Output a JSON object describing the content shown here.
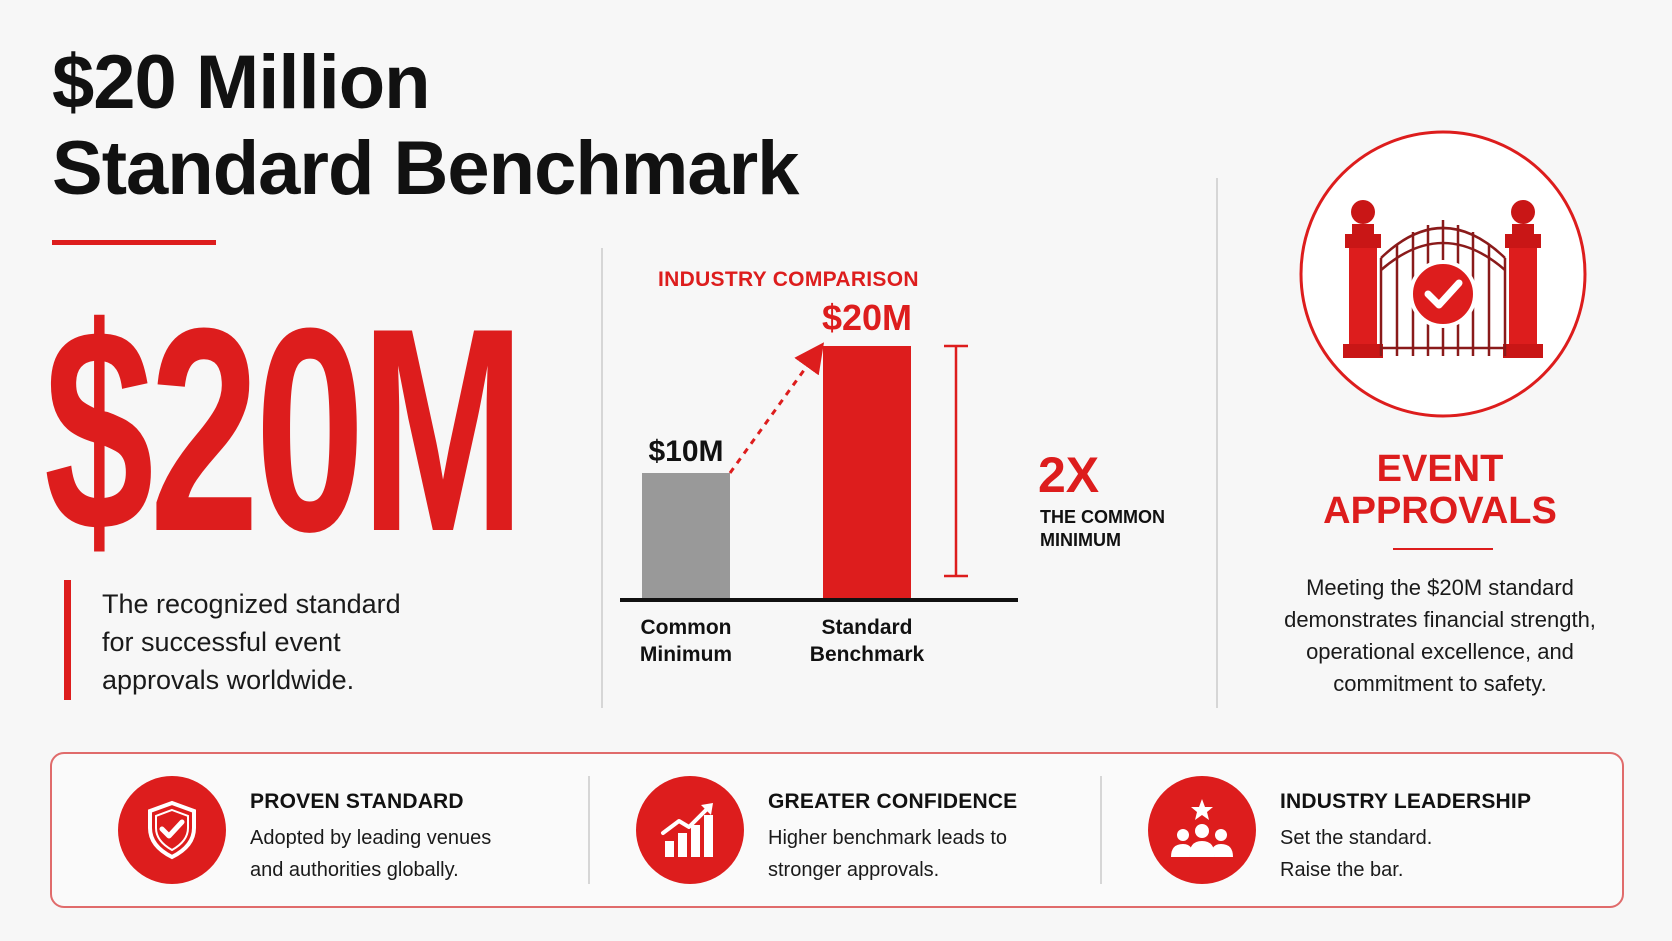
{
  "page": {
    "title_line1": "$20 Million",
    "title_line2": "Standard Benchmark",
    "accent_color": "#dd1d1d"
  },
  "hero": {
    "value": "$20M",
    "desc_line1": "The recognized standard",
    "desc_line2": "for successful event",
    "desc_line3": "approvals worldwide."
  },
  "chart_heading": "INDUSTRY COMPARISON",
  "chart_data": {
    "type": "bar",
    "title": "INDUSTRY COMPARISON",
    "categories": [
      "Common Minimum",
      "Standard Benchmark"
    ],
    "category_lines": [
      [
        "Common",
        "Minimum"
      ],
      [
        "Standard",
        "Benchmark"
      ]
    ],
    "values": [
      10,
      20
    ],
    "value_labels": [
      "$10M",
      "$20M"
    ],
    "bar_colors": [
      "#999999",
      "#dd1d1d"
    ],
    "ylim": [
      0,
      20
    ],
    "grid": false,
    "annotation": {
      "value": "2X",
      "label_line1": "THE COMMON",
      "label_line2": "MINIMUM"
    }
  },
  "approvals": {
    "icon": "gate-check-icon",
    "title_line1": "EVENT",
    "title_line2": "APPROVALS",
    "desc_line1": "Meeting the $20M standard",
    "desc_line2": "demonstrates financial strength,",
    "desc_line3": "operational excellence, and",
    "desc_line4": "commitment to safety."
  },
  "features": [
    {
      "icon": "shield-check-icon",
      "title": "PROVEN STANDARD",
      "line1": "Adopted by leading venues",
      "line2": "and authorities globally."
    },
    {
      "icon": "growth-chart-icon",
      "title": "GREATER CONFIDENCE",
      "line1": "Higher benchmark leads to",
      "line2": "stronger approvals."
    },
    {
      "icon": "team-star-icon",
      "title": "INDUSTRY LEADERSHIP",
      "line1": "Set the standard.",
      "line2": "Raise the bar."
    }
  ]
}
